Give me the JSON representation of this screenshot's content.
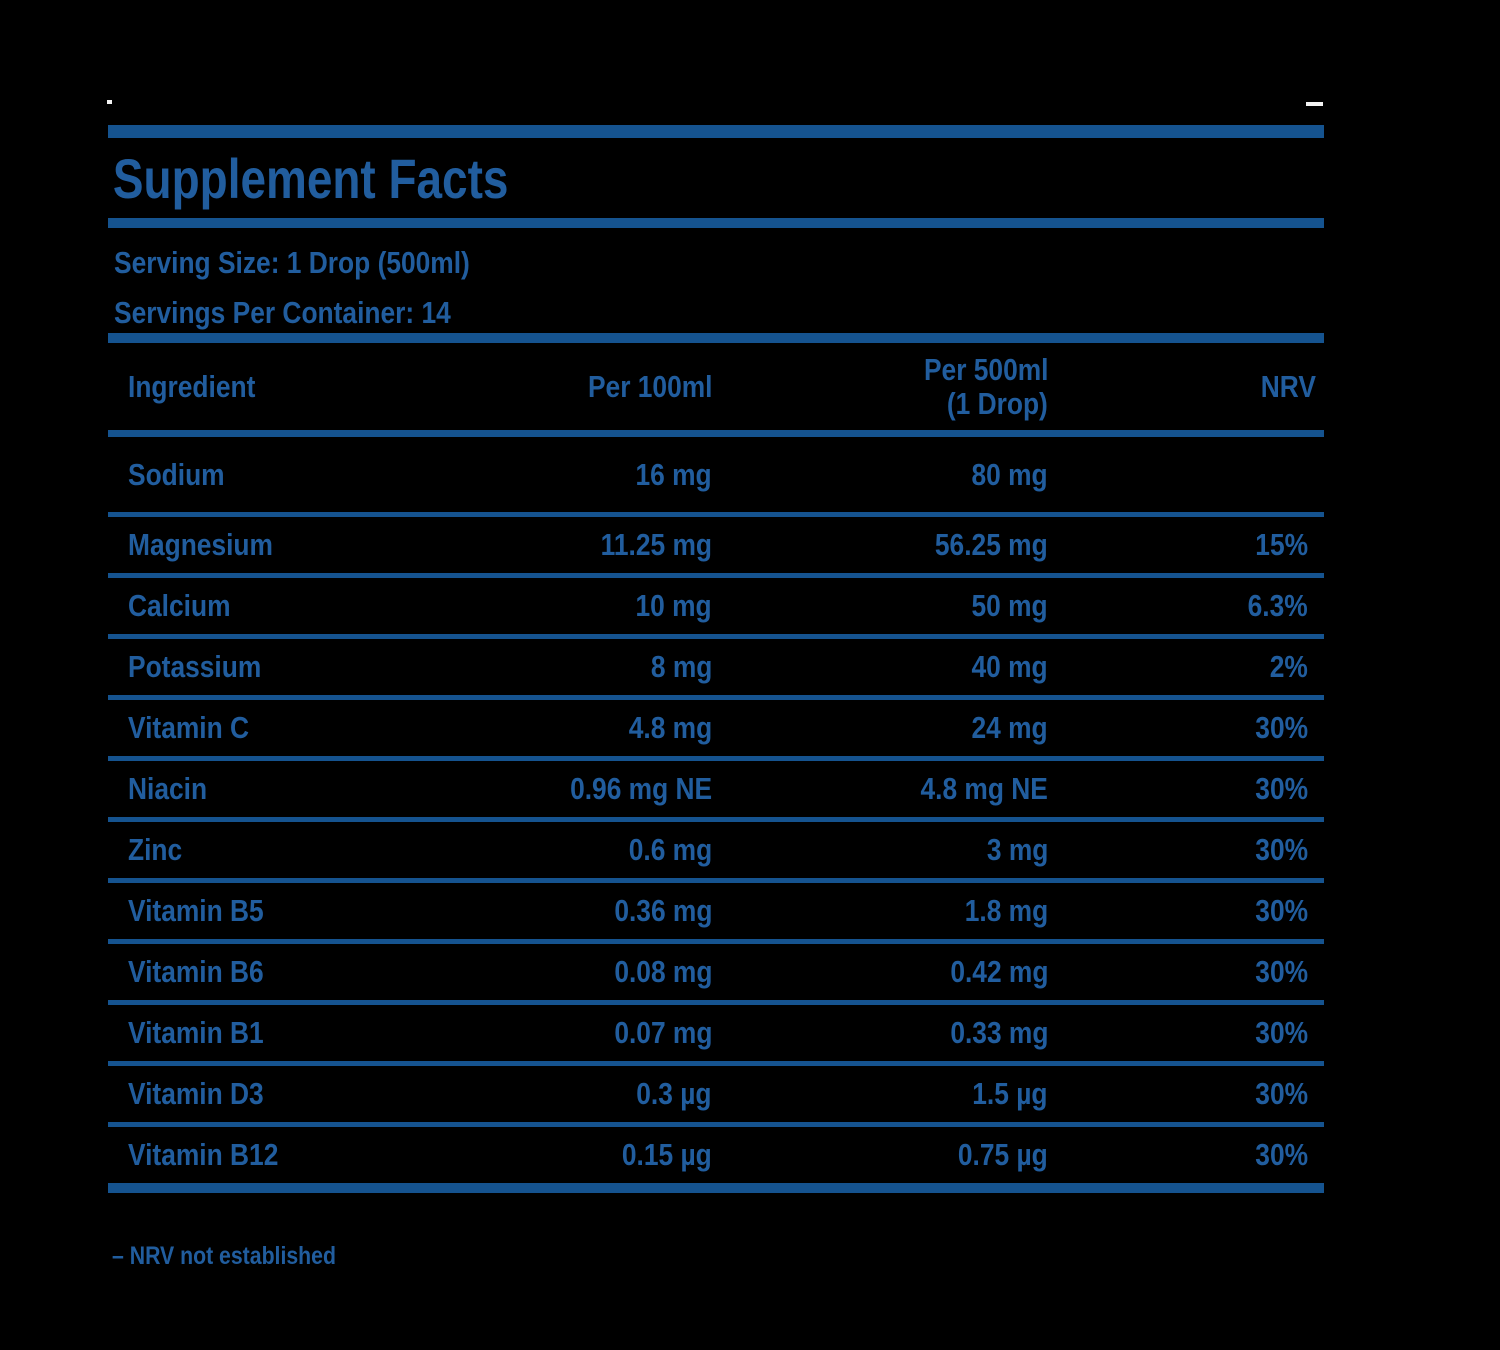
{
  "colors": {
    "background": "#000000",
    "rule_blue": "#15538f",
    "text_blue": "#215d9e"
  },
  "header": {
    "title": "Supplement Facts",
    "serving_size": "Serving Size: 1 Drop (500ml)",
    "servings_per_container": "Servings Per Container: 14"
  },
  "table": {
    "columns": {
      "ingredient": "Ingredient",
      "per_100ml": "Per 100ml",
      "per_500ml_line1": "Per 500ml",
      "per_500ml_line2": "(1 Drop)",
      "nrv": "NRV"
    },
    "rows": [
      {
        "name": "Sodium",
        "per_100ml": "16 mg",
        "per_500ml": "80 mg",
        "nrv": ""
      },
      {
        "name": "Magnesium",
        "per_100ml": "11.25 mg",
        "per_500ml": "56.25 mg",
        "nrv": "15%"
      },
      {
        "name": "Calcium",
        "per_100ml": "10 mg",
        "per_500ml": "50 mg",
        "nrv": "6.3%"
      },
      {
        "name": "Potassium",
        "per_100ml": "8 mg",
        "per_500ml": "40 mg",
        "nrv": "2%"
      },
      {
        "name": "Vitamin C",
        "per_100ml": "4.8 mg",
        "per_500ml": "24 mg",
        "nrv": "30%"
      },
      {
        "name": "Niacin",
        "per_100ml": "0.96 mg NE",
        "per_500ml": "4.8 mg NE",
        "nrv": "30%"
      },
      {
        "name": "Zinc",
        "per_100ml": "0.6 mg",
        "per_500ml": "3 mg",
        "nrv": "30%"
      },
      {
        "name": "Vitamin B5",
        "per_100ml": "0.36 mg",
        "per_500ml": "1.8 mg",
        "nrv": "30%"
      },
      {
        "name": "Vitamin B6",
        "per_100ml": "0.08 mg",
        "per_500ml": "0.42 mg",
        "nrv": "30%"
      },
      {
        "name": "Vitamin B1",
        "per_100ml": "0.07 mg",
        "per_500ml": "0.33 mg",
        "nrv": "30%"
      },
      {
        "name": "Vitamin D3",
        "per_100ml": "0.3 µg",
        "per_500ml": "1.5 µg",
        "nrv": "30%"
      },
      {
        "name": "Vitamin B12",
        "per_100ml": "0.15 µg",
        "per_500ml": "0.75 µg",
        "nrv": "30%"
      }
    ]
  },
  "footnote": "– NRV not established"
}
